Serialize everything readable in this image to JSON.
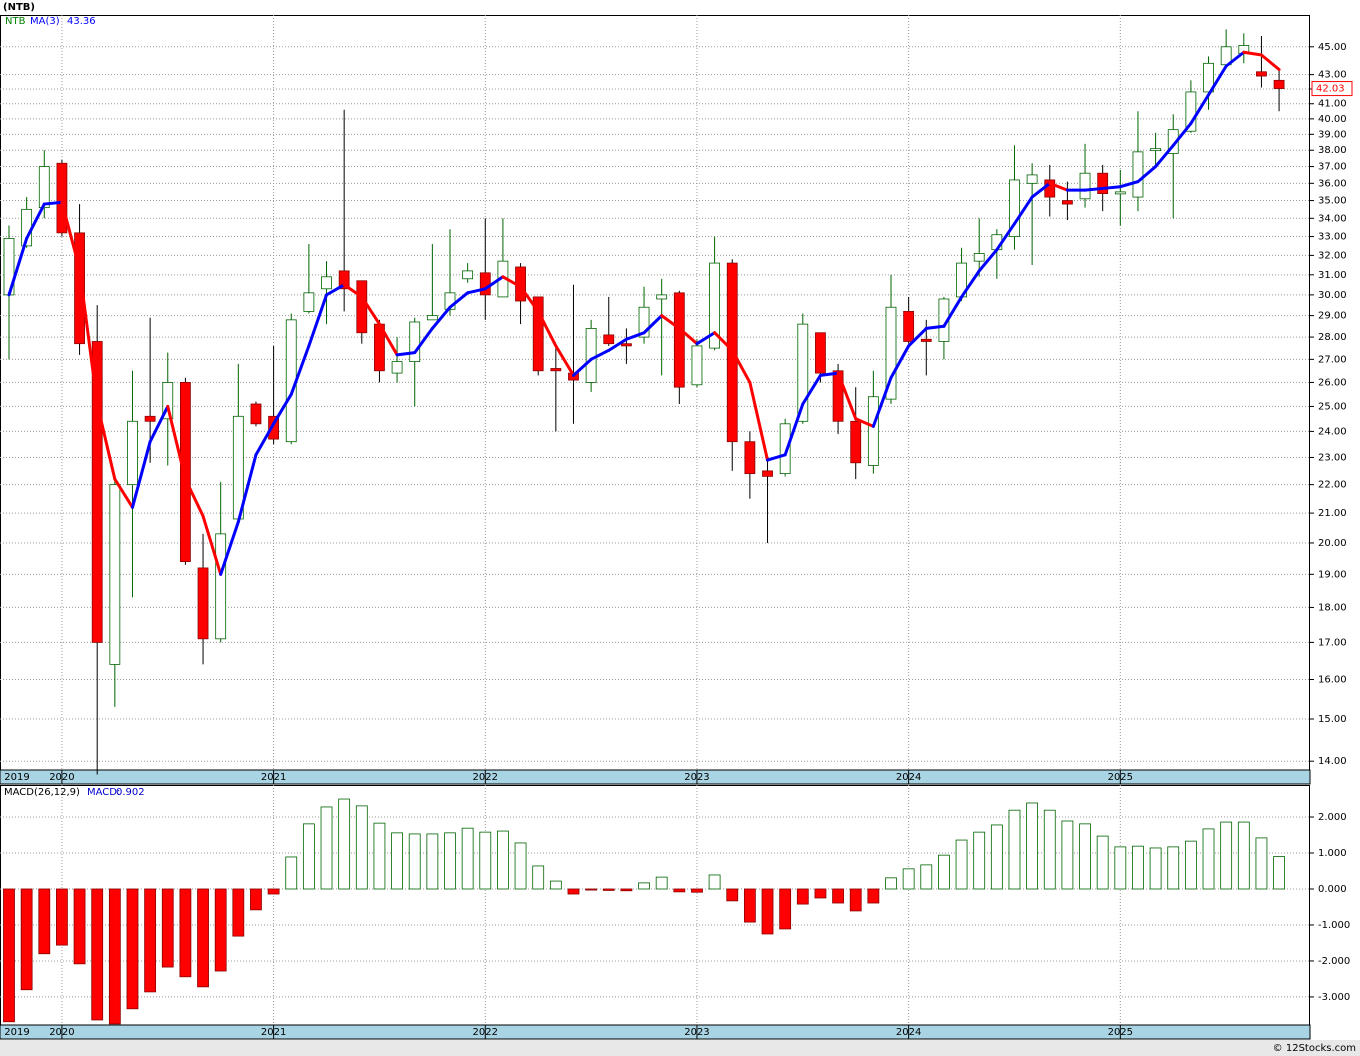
{
  "chart_data": [
    {
      "type": "candlestick",
      "title": "(NTB)",
      "symbol": "NTB",
      "symbol_color": "#008000",
      "categories": [
        "2019",
        null,
        null,
        "2020",
        null,
        null,
        null,
        null,
        null,
        null,
        null,
        null,
        null,
        null,
        null,
        "2021",
        null,
        null,
        null,
        null,
        null,
        null,
        null,
        null,
        null,
        null,
        null,
        "2022",
        null,
        null,
        null,
        null,
        null,
        null,
        null,
        null,
        null,
        null,
        null,
        "2023",
        null,
        null,
        null,
        null,
        null,
        null,
        null,
        null,
        null,
        null,
        null,
        "2024",
        null,
        null,
        null,
        null,
        null,
        null,
        null,
        null,
        null,
        null,
        null,
        "2025",
        null,
        null,
        null,
        null,
        null,
        null,
        null,
        null,
        null
      ],
      "open": [
        30.0,
        32.5,
        34.6,
        37.2,
        33.2,
        27.8,
        16.4,
        22.0,
        24.6,
        24.5,
        26.0,
        19.2,
        17.1,
        20.8,
        25.1,
        24.6,
        23.6,
        29.2,
        30.3,
        31.2,
        30.7,
        28.6,
        26.4,
        26.9,
        28.8,
        29.3,
        30.8,
        31.1,
        29.9,
        31.4,
        29.9,
        26.6,
        26.4,
        26.0,
        28.1,
        27.7,
        28.0,
        29.8,
        30.1,
        25.9,
        27.5,
        31.6,
        23.6,
        22.5,
        22.4,
        24.4,
        28.2,
        26.5,
        24.4,
        22.7,
        25.3,
        29.2,
        27.9,
        27.8,
        29.9,
        31.7,
        32.3,
        33.0,
        36.0,
        36.2,
        35.0,
        35.1,
        36.6,
        35.4,
        35.2,
        38.0,
        37.8,
        39.2,
        41.8,
        43.7,
        44.5,
        43.2,
        42.6
      ],
      "high": [
        33.6,
        35.2,
        38.0,
        37.4,
        34.8,
        29.5,
        22.2,
        26.5,
        28.9,
        27.3,
        26.2,
        20.3,
        22.1,
        26.8,
        25.2,
        27.6,
        29.1,
        32.6,
        31.7,
        40.6,
        30.7,
        28.8,
        28.0,
        28.9,
        32.6,
        33.4,
        31.6,
        34.0,
        34.0,
        31.6,
        29.9,
        27.7,
        30.5,
        28.8,
        29.9,
        28.4,
        30.4,
        30.8,
        30.2,
        27.9,
        33.0,
        31.8,
        24.0,
        22.9,
        24.5,
        29.1,
        28.2,
        26.8,
        25.8,
        26.5,
        31.0,
        29.9,
        28.8,
        29.9,
        32.4,
        34.0,
        33.4,
        38.3,
        37.2,
        37.1,
        36.1,
        38.4,
        37.1,
        36.8,
        40.5,
        39.1,
        40.3,
        42.6,
        44.3,
        46.3,
        46.0,
        45.8,
        43.4
      ],
      "low": [
        27.0,
        32.4,
        34.0,
        33.0,
        27.2,
        13.7,
        15.3,
        18.3,
        22.8,
        22.7,
        19.3,
        16.4,
        17.0,
        20.7,
        24.2,
        23.5,
        23.5,
        29.1,
        28.6,
        29.2,
        27.7,
        26.0,
        26.0,
        25.0,
        28.8,
        29.0,
        30.6,
        28.8,
        29.9,
        28.6,
        26.3,
        24.0,
        24.3,
        25.6,
        27.6,
        26.8,
        27.7,
        26.3,
        25.1,
        25.8,
        27.4,
        22.5,
        21.5,
        20.0,
        22.3,
        24.3,
        26.0,
        23.9,
        22.2,
        22.4,
        25.1,
        27.7,
        26.3,
        27.0,
        29.7,
        30.9,
        30.8,
        32.3,
        31.5,
        34.1,
        33.9,
        34.6,
        34.4,
        33.6,
        34.4,
        37.0,
        34.0,
        39.1,
        40.6,
        43.7,
        43.8,
        42.1,
        40.5
      ],
      "close": [
        32.9,
        34.5,
        37.0,
        33.2,
        27.7,
        17.0,
        22.0,
        24.4,
        24.4,
        26.0,
        19.4,
        17.1,
        20.3,
        24.6,
        24.3,
        23.7,
        28.8,
        30.1,
        30.9,
        30.3,
        28.2,
        26.5,
        26.9,
        28.7,
        29.0,
        30.1,
        31.2,
        30.0,
        31.7,
        29.7,
        26.5,
        26.5,
        26.1,
        28.4,
        27.7,
        27.6,
        29.4,
        30.0,
        25.8,
        27.6,
        31.6,
        23.6,
        22.4,
        22.3,
        24.3,
        28.6,
        26.4,
        24.4,
        22.8,
        25.4,
        29.4,
        27.8,
        27.8,
        29.8,
        31.6,
        32.1,
        33.1,
        36.2,
        36.5,
        35.2,
        34.8,
        36.6,
        35.4,
        35.5,
        37.9,
        38.1,
        39.3,
        41.8,
        43.8,
        45.0,
        45.1,
        42.9,
        42.03
      ],
      "up_color": "#ffffff",
      "up_edge": "#006400",
      "down_color": "#ff0000",
      "down_edge": "#8b0000",
      "log_scale": true,
      "ylim": [
        13.8,
        47.4
      ],
      "yticks": [
        {
          "value": 14,
          "label": "14.00"
        },
        {
          "value": 15,
          "label": "15.00"
        },
        {
          "value": 16,
          "label": "16.00"
        },
        {
          "value": 17,
          "label": "17.00"
        },
        {
          "value": 18,
          "label": "18.00"
        },
        {
          "value": 19,
          "label": "19.00"
        },
        {
          "value": 20,
          "label": "20.00"
        },
        {
          "value": 21,
          "label": "21.00"
        },
        {
          "value": 22,
          "label": "22.00"
        },
        {
          "value": 23,
          "label": "23.00"
        },
        {
          "value": 24,
          "label": "24.00"
        },
        {
          "value": 25,
          "label": "25.00"
        },
        {
          "value": 26,
          "label": "26.00"
        },
        {
          "value": 27,
          "label": "27.00"
        },
        {
          "value": 28,
          "label": "28.00"
        },
        {
          "value": 29,
          "label": "29.00"
        },
        {
          "value": 30,
          "label": "30.00"
        },
        {
          "value": 31,
          "label": "31.00"
        },
        {
          "value": 32,
          "label": "32.00"
        },
        {
          "value": 33,
          "label": "33.00"
        },
        {
          "value": 34,
          "label": "34.00"
        },
        {
          "value": 35,
          "label": "35.00"
        },
        {
          "value": 36,
          "label": "36.00"
        },
        {
          "value": 37,
          "label": "37.00"
        },
        {
          "value": 38,
          "label": "38.00"
        },
        {
          "value": 39,
          "label": "39.00"
        },
        {
          "value": 40,
          "label": "40.00"
        },
        {
          "value": 41,
          "label": "41.00"
        },
        {
          "value": 42,
          "label": "42.00"
        },
        {
          "value": 43,
          "label": "43.00"
        },
        {
          "value": 45,
          "label": "45.00"
        }
      ],
      "grid": true,
      "ma": {
        "name": "MA(3)",
        "up_color": "#0000ff",
        "down_color": "#ff0000",
        "values": [
          30.0,
          32.9,
          34.8,
          34.9,
          31.3,
          25.1,
          22.2,
          21.2,
          23.6,
          25.0,
          22.2,
          20.9,
          19.0,
          20.7,
          23.1,
          24.3,
          25.5,
          27.6,
          30.0,
          30.5,
          29.9,
          28.6,
          27.2,
          27.3,
          28.4,
          29.4,
          30.1,
          30.3,
          30.9,
          30.4,
          29.2,
          27.6,
          26.3,
          27.0,
          27.4,
          27.9,
          28.2,
          29.0,
          28.4,
          27.7,
          28.2,
          27.4,
          26.0,
          22.9,
          23.1,
          25.1,
          26.3,
          26.4,
          24.5,
          24.2,
          26.2,
          27.6,
          28.4,
          28.5,
          29.9,
          31.2,
          32.3,
          33.7,
          35.2,
          36.0,
          35.6,
          35.6,
          35.7,
          35.8,
          36.1,
          37.0,
          38.3,
          39.7,
          41.6,
          43.6,
          44.6,
          44.4,
          43.36
        ]
      }
    },
    {
      "type": "bar",
      "title": "MACD(26,12,9)",
      "label": "MACD:",
      "categories": [
        "2019",
        null,
        null,
        "2020",
        null,
        null,
        null,
        null,
        null,
        null,
        null,
        null,
        null,
        null,
        null,
        "2021",
        null,
        null,
        null,
        null,
        null,
        null,
        null,
        null,
        null,
        null,
        null,
        "2022",
        null,
        null,
        null,
        null,
        null,
        null,
        null,
        null,
        null,
        null,
        null,
        "2023",
        null,
        null,
        null,
        null,
        null,
        null,
        null,
        null,
        null,
        null,
        null,
        "2024",
        null,
        null,
        null,
        null,
        null,
        null,
        null,
        null,
        null,
        null,
        null,
        "2025",
        null,
        null,
        null,
        null,
        null,
        null,
        null,
        null,
        null
      ],
      "values": [
        -3.69,
        -2.8,
        -1.8,
        -1.56,
        -2.08,
        -3.64,
        -3.75,
        -3.33,
        -2.86,
        -2.17,
        -2.44,
        -2.72,
        -2.28,
        -1.31,
        -0.58,
        -0.14,
        0.89,
        1.81,
        2.28,
        2.5,
        2.31,
        1.83,
        1.56,
        1.53,
        1.53,
        1.56,
        1.69,
        1.58,
        1.61,
        1.28,
        0.64,
        0.22,
        -0.14,
        -0.03,
        -0.04,
        -0.05,
        0.17,
        0.33,
        -0.08,
        -0.09,
        0.39,
        -0.33,
        -0.92,
        -1.25,
        -1.11,
        -0.42,
        -0.25,
        -0.39,
        -0.61,
        -0.39,
        0.31,
        0.56,
        0.67,
        0.94,
        1.36,
        1.58,
        1.78,
        2.19,
        2.39,
        2.19,
        1.89,
        1.81,
        1.47,
        1.17,
        1.19,
        1.14,
        1.17,
        1.33,
        1.67,
        1.86,
        1.86,
        1.42,
        0.902
      ],
      "pos_color": "#ffffff",
      "pos_edge": "#006400",
      "neg_color": "#ff0000",
      "neg_edge": "#8b0000",
      "ylim": [
        -3.78,
        2.89
      ],
      "yticks": [
        {
          "value": -3,
          "label": "-3.000"
        },
        {
          "value": -2,
          "label": "-2.000"
        },
        {
          "value": -1,
          "label": "-1.000"
        },
        {
          "value": 0,
          "label": "0.000"
        },
        {
          "value": 1,
          "label": "1.000"
        },
        {
          "value": 2,
          "label": "2.000"
        }
      ],
      "grid": true
    }
  ],
  "footer": "© 12Stocks.com"
}
